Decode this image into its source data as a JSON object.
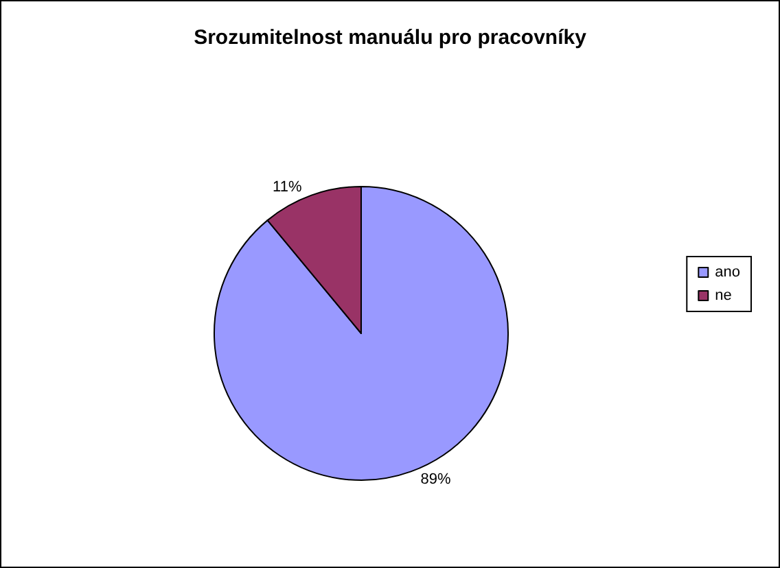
{
  "chart_data": {
    "type": "pie",
    "title": "Srozumitelnost manuálu pro pracovníky",
    "categories": [
      "ano",
      "ne"
    ],
    "values": [
      89,
      11
    ],
    "value_labels": [
      "89%",
      "11%"
    ],
    "colors": [
      "#9999ff",
      "#993366"
    ],
    "legend": "right"
  }
}
